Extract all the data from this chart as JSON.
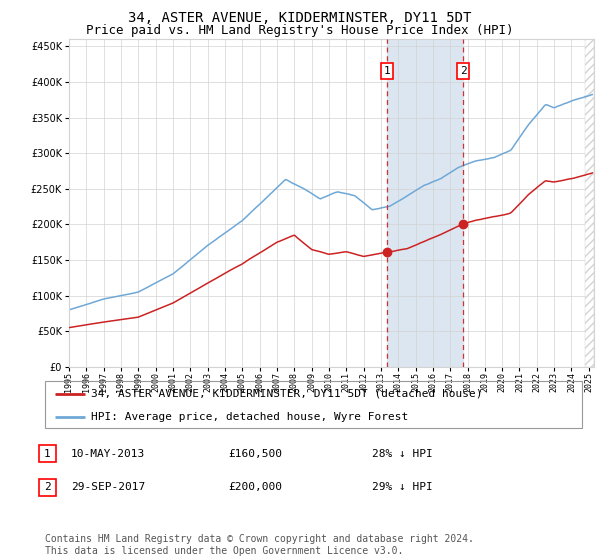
{
  "title": "34, ASTER AVENUE, KIDDERMINSTER, DY11 5DT",
  "subtitle": "Price paid vs. HM Land Registry's House Price Index (HPI)",
  "ylim": [
    0,
    460000
  ],
  "yticks": [
    0,
    50000,
    100000,
    150000,
    200000,
    250000,
    300000,
    350000,
    400000,
    450000
  ],
  "xlim_start": 1995.0,
  "xlim_end": 2025.3,
  "sale1_date": 2013.36,
  "sale1_price": 160500,
  "sale2_date": 2017.75,
  "sale2_price": 200000,
  "hpi_color": "#6fa8d6",
  "price_color": "#cc2222",
  "shade_color": "#dce6f0",
  "vline_color": "#cc3333",
  "legend_label_price": "34, ASTER AVENUE, KIDDERMINSTER, DY11 5DT (detached house)",
  "legend_label_hpi": "HPI: Average price, detached house, Wyre Forest",
  "annotation1_date": "10-MAY-2013",
  "annotation1_price": "£160,500",
  "annotation1_hpi": "28% ↓ HPI",
  "annotation2_date": "29-SEP-2017",
  "annotation2_price": "£200,000",
  "annotation2_hpi": "29% ↓ HPI",
  "footer": "Contains HM Land Registry data © Crown copyright and database right 2024.\nThis data is licensed under the Open Government Licence v3.0.",
  "title_fontsize": 10,
  "subtitle_fontsize": 9,
  "tick_fontsize": 7,
  "legend_fontsize": 8,
  "footer_fontsize": 7
}
